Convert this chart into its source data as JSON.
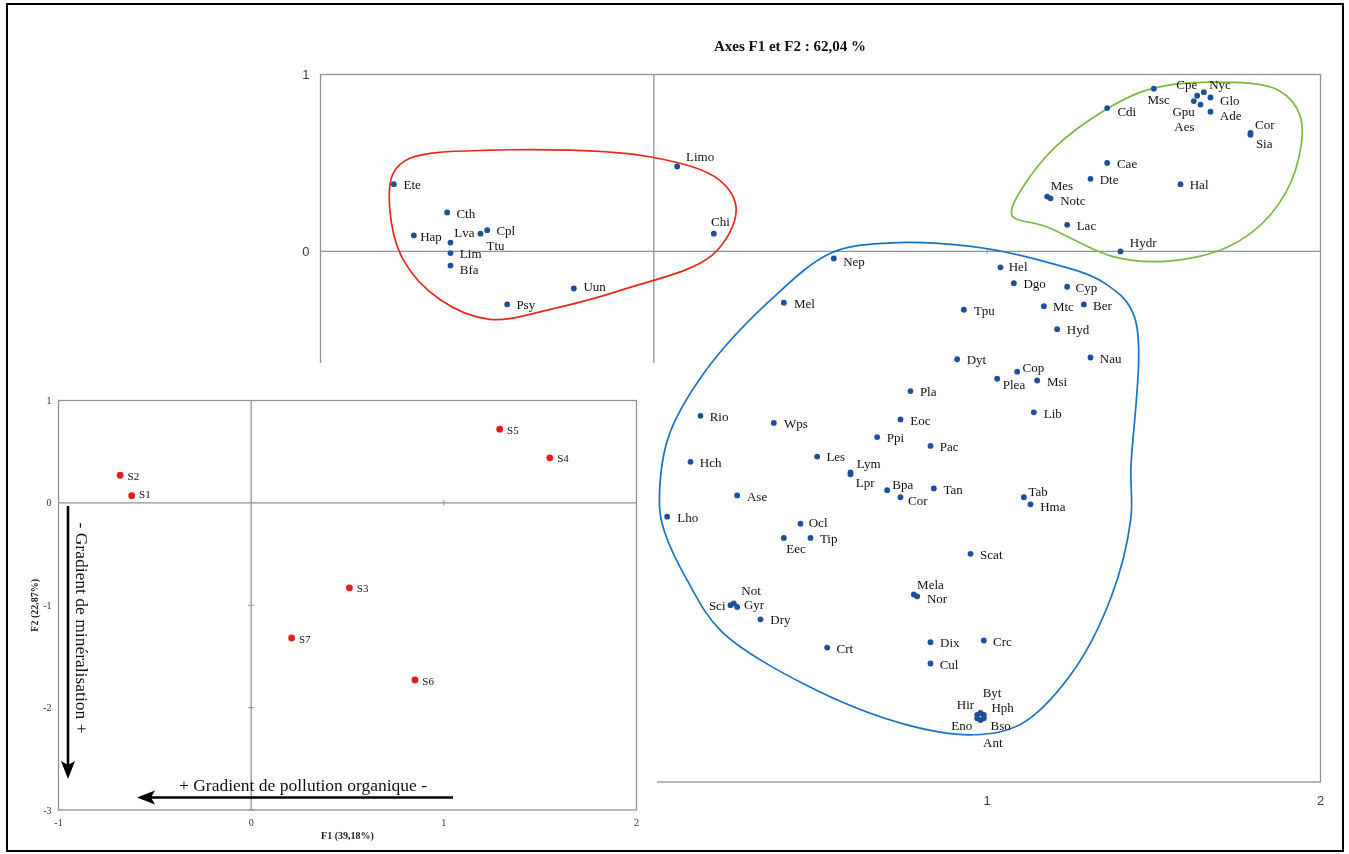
{
  "chart_data": [
    {
      "type": "scatter",
      "title": "Axes F1 et F2 : 62,04 %",
      "xlim": [
        -1,
        2
      ],
      "ylim": [
        -3,
        1
      ],
      "xticks": [
        1,
        2
      ],
      "yticks": [
        0,
        1
      ],
      "marker": "circle",
      "series": [
        {
          "name": "Ete",
          "color": "#1c4f9c",
          "x": [
            -0.78
          ],
          "values": [
            0.38
          ]
        },
        {
          "name": "Cth",
          "color": "#1c4f9c",
          "x": [
            -0.62
          ],
          "values": [
            0.22
          ]
        },
        {
          "name": "Cpl",
          "color": "#1c4f9c",
          "x": [
            -0.5
          ],
          "values": [
            0.12
          ]
        },
        {
          "name": "Ttu",
          "color": "#1c4f9c",
          "x": [
            -0.52
          ],
          "values": [
            0.1
          ]
        },
        {
          "name": "Hap",
          "color": "#1c4f9c",
          "x": [
            -0.72
          ],
          "values": [
            0.09
          ]
        },
        {
          "name": "Lva",
          "color": "#1c4f9c",
          "x": [
            -0.61
          ],
          "values": [
            0.05
          ]
        },
        {
          "name": "Lim",
          "color": "#1c4f9c",
          "x": [
            -0.61
          ],
          "values": [
            -0.01
          ]
        },
        {
          "name": "Bfa",
          "color": "#1c4f9c",
          "x": [
            -0.61
          ],
          "values": [
            -0.08
          ]
        },
        {
          "name": "Uun",
          "color": "#1c4f9c",
          "x": [
            -0.24
          ],
          "values": [
            -0.21
          ]
        },
        {
          "name": "Psy",
          "color": "#1c4f9c",
          "x": [
            -0.44
          ],
          "values": [
            -0.3
          ]
        },
        {
          "name": "Limo",
          "color": "#1c4f9c",
          "x": [
            0.07
          ],
          "values": [
            0.48
          ]
        },
        {
          "name": "Chi",
          "color": "#1c4f9c",
          "x": [
            0.18
          ],
          "values": [
            0.1
          ]
        },
        {
          "name": "Msc",
          "color": "#1c4f9c",
          "x": [
            1.5
          ],
          "values": [
            0.92
          ]
        },
        {
          "name": "Nyc",
          "color": "#1c4f9c",
          "x": [
            1.65
          ],
          "values": [
            0.9
          ]
        },
        {
          "name": "Cpe",
          "color": "#1c4f9c",
          "x": [
            1.63
          ],
          "values": [
            0.88
          ]
        },
        {
          "name": "Glo",
          "color": "#1c4f9c",
          "x": [
            1.67
          ],
          "values": [
            0.87
          ]
        },
        {
          "name": "Gpu",
          "color": "#1c4f9c",
          "x": [
            1.62
          ],
          "values": [
            0.85
          ]
        },
        {
          "name": "Aes",
          "color": "#1c4f9c",
          "x": [
            1.64
          ],
          "values": [
            0.83
          ]
        },
        {
          "name": "Ade",
          "color": "#1c4f9c",
          "x": [
            1.67
          ],
          "values": [
            0.79
          ]
        },
        {
          "name": "Cdi",
          "color": "#1c4f9c",
          "x": [
            1.36
          ],
          "values": [
            0.81
          ]
        },
        {
          "name": "Cor",
          "color": "#1c4f9c",
          "x": [
            1.79
          ],
          "values": [
            0.67
          ]
        },
        {
          "name": "Sia",
          "color": "#1c4f9c",
          "x": [
            1.79
          ],
          "values": [
            0.66
          ]
        },
        {
          "name": "Cae",
          "color": "#1c4f9c",
          "x": [
            1.36
          ],
          "values": [
            0.5
          ]
        },
        {
          "name": "Dte",
          "color": "#1c4f9c",
          "x": [
            1.31
          ],
          "values": [
            0.41
          ]
        },
        {
          "name": "Mes",
          "color": "#1c4f9c",
          "x": [
            1.18
          ],
          "values": [
            0.31
          ]
        },
        {
          "name": "Notc",
          "color": "#1c4f9c",
          "x": [
            1.19
          ],
          "values": [
            0.3
          ]
        },
        {
          "name": "Hal",
          "color": "#1c4f9c",
          "x": [
            1.58
          ],
          "values": [
            0.38
          ]
        },
        {
          "name": "Lac",
          "color": "#1c4f9c",
          "x": [
            1.24
          ],
          "values": [
            0.15
          ]
        },
        {
          "name": "Hydr",
          "color": "#1c4f9c",
          "x": [
            1.4
          ],
          "values": [
            0.0
          ]
        },
        {
          "name": "Nep",
          "color": "#1c4f9c",
          "x": [
            0.54
          ],
          "values": [
            -0.04
          ]
        },
        {
          "name": "Hel",
          "color": "#1c4f9c",
          "x": [
            1.04
          ],
          "values": [
            -0.09
          ]
        },
        {
          "name": "Dgo",
          "color": "#1c4f9c",
          "x": [
            1.08
          ],
          "values": [
            -0.18
          ]
        },
        {
          "name": "Cyp",
          "color": "#1c4f9c",
          "x": [
            1.24
          ],
          "values": [
            -0.2
          ]
        },
        {
          "name": "Ber",
          "color": "#1c4f9c",
          "x": [
            1.29
          ],
          "values": [
            -0.3
          ]
        },
        {
          "name": "Mtc",
          "color": "#1c4f9c",
          "x": [
            1.17
          ],
          "values": [
            -0.31
          ]
        },
        {
          "name": "Mel",
          "color": "#1c4f9c",
          "x": [
            0.39
          ],
          "values": [
            -0.29
          ]
        },
        {
          "name": "Tpu",
          "color": "#1c4f9c",
          "x": [
            0.93
          ],
          "values": [
            -0.33
          ]
        },
        {
          "name": "Hyd",
          "color": "#1c4f9c",
          "x": [
            1.21
          ],
          "values": [
            -0.44
          ]
        },
        {
          "name": "Nau",
          "color": "#1c4f9c",
          "x": [
            1.31
          ],
          "values": [
            -0.6
          ]
        },
        {
          "name": "Dyt",
          "color": "#1c4f9c",
          "x": [
            0.91
          ],
          "values": [
            -0.61
          ]
        },
        {
          "name": "Cop",
          "color": "#1c4f9c",
          "x": [
            1.09
          ],
          "values": [
            -0.68
          ]
        },
        {
          "name": "Plea",
          "color": "#1c4f9c",
          "x": [
            1.03
          ],
          "values": [
            -0.72
          ]
        },
        {
          "name": "Msi",
          "color": "#1c4f9c",
          "x": [
            1.15
          ],
          "values": [
            -0.73
          ]
        },
        {
          "name": "Pla",
          "color": "#1c4f9c",
          "x": [
            0.77
          ],
          "values": [
            -0.79
          ]
        },
        {
          "name": "Lib",
          "color": "#1c4f9c",
          "x": [
            1.14
          ],
          "values": [
            -0.91
          ]
        },
        {
          "name": "Rio",
          "color": "#1c4f9c",
          "x": [
            0.14
          ],
          "values": [
            -0.93
          ]
        },
        {
          "name": "Wps",
          "color": "#1c4f9c",
          "x": [
            0.36
          ],
          "values": [
            -0.97
          ]
        },
        {
          "name": "Eoc",
          "color": "#1c4f9c",
          "x": [
            0.74
          ],
          "values": [
            -0.95
          ]
        },
        {
          "name": "Ppi",
          "color": "#1c4f9c",
          "x": [
            0.67
          ],
          "values": [
            -1.05
          ]
        },
        {
          "name": "Pac",
          "color": "#1c4f9c",
          "x": [
            0.83
          ],
          "values": [
            -1.1
          ]
        },
        {
          "name": "Hch",
          "color": "#1c4f9c",
          "x": [
            0.11
          ],
          "values": [
            -1.19
          ]
        },
        {
          "name": "Les",
          "color": "#1c4f9c",
          "x": [
            0.49
          ],
          "values": [
            -1.16
          ]
        },
        {
          "name": "Lym",
          "color": "#1c4f9c",
          "x": [
            0.59
          ],
          "values": [
            -1.25
          ]
        },
        {
          "name": "Lpr",
          "color": "#1c4f9c",
          "x": [
            0.59
          ],
          "values": [
            -1.26
          ]
        },
        {
          "name": "Bpa",
          "color": "#1c4f9c",
          "x": [
            0.7
          ],
          "values": [
            -1.35
          ]
        },
        {
          "name": "Cor",
          "color": "#1c4f9c",
          "x": [
            0.74
          ],
          "values": [
            -1.39
          ]
        },
        {
          "name": "Tan",
          "color": "#1c4f9c",
          "x": [
            0.84
          ],
          "values": [
            -1.34
          ]
        },
        {
          "name": "Ase",
          "color": "#1c4f9c",
          "x": [
            0.25
          ],
          "values": [
            -1.38
          ]
        },
        {
          "name": "Tab",
          "color": "#1c4f9c",
          "x": [
            1.11
          ],
          "values": [
            -1.39
          ]
        },
        {
          "name": "Hma",
          "color": "#1c4f9c",
          "x": [
            1.13
          ],
          "values": [
            -1.43
          ]
        },
        {
          "name": "Lho",
          "color": "#1c4f9c",
          "x": [
            0.04
          ],
          "values": [
            -1.5
          ]
        },
        {
          "name": "Ocl",
          "color": "#1c4f9c",
          "x": [
            0.44
          ],
          "values": [
            -1.54
          ]
        },
        {
          "name": "Eec",
          "color": "#1c4f9c",
          "x": [
            0.39
          ],
          "values": [
            -1.62
          ]
        },
        {
          "name": "Tip",
          "color": "#1c4f9c",
          "x": [
            0.47
          ],
          "values": [
            -1.62
          ]
        },
        {
          "name": "Scat",
          "color": "#1c4f9c",
          "x": [
            0.95
          ],
          "values": [
            -1.71
          ]
        },
        {
          "name": "Mela",
          "color": "#1c4f9c",
          "x": [
            0.78
          ],
          "values": [
            -1.94
          ]
        },
        {
          "name": "Nor",
          "color": "#1c4f9c",
          "x": [
            0.79
          ],
          "values": [
            -1.95
          ]
        },
        {
          "name": "Sci",
          "color": "#1c4f9c",
          "x": [
            0.23
          ],
          "values": [
            -2.0
          ]
        },
        {
          "name": "Not",
          "color": "#1c4f9c",
          "x": [
            0.24
          ],
          "values": [
            -1.99
          ]
        },
        {
          "name": "Gyr",
          "color": "#1c4f9c",
          "x": [
            0.25
          ],
          "values": [
            -2.01
          ]
        },
        {
          "name": "Dry",
          "color": "#1c4f9c",
          "x": [
            0.32
          ],
          "values": [
            -2.08
          ]
        },
        {
          "name": "Crt",
          "color": "#1c4f9c",
          "x": [
            0.52
          ],
          "values": [
            -2.24
          ]
        },
        {
          "name": "Dix",
          "color": "#1c4f9c",
          "x": [
            0.83
          ],
          "values": [
            -2.21
          ]
        },
        {
          "name": "Crc",
          "color": "#1c4f9c",
          "x": [
            0.99
          ],
          "values": [
            -2.2
          ]
        },
        {
          "name": "Cul",
          "color": "#1c4f9c",
          "x": [
            0.83
          ],
          "values": [
            -2.33
          ]
        },
        {
          "name": "Hir",
          "color": "#1c4f9c",
          "x": [
            0.97
          ],
          "values": [
            -2.62
          ]
        },
        {
          "name": "Byt",
          "color": "#1c4f9c",
          "x": [
            0.98
          ],
          "values": [
            -2.61
          ]
        },
        {
          "name": "Hph",
          "color": "#1c4f9c",
          "x": [
            0.99
          ],
          "values": [
            -2.62
          ]
        },
        {
          "name": "Eno",
          "color": "#1c4f9c",
          "x": [
            0.97
          ],
          "values": [
            -2.64
          ]
        },
        {
          "name": "Bso",
          "color": "#1c4f9c",
          "x": [
            0.99
          ],
          "values": [
            -2.64
          ]
        },
        {
          "name": "Ant",
          "color": "#1c4f9c",
          "x": [
            0.98
          ],
          "values": [
            -2.65
          ]
        }
      ]
    },
    {
      "type": "scatter",
      "xlabel": "F1 (39,18%)",
      "ylabel": "F2 (22,87%)",
      "xlim": [
        -1,
        2
      ],
      "ylim": [
        -3,
        1
      ],
      "xticks": [
        -1,
        0,
        1,
        2
      ],
      "yticks": [
        -3,
        -2,
        -1,
        0,
        1
      ],
      "marker": "circle",
      "annotations": [
        "- Gradient de minéralisation +",
        "+ Gradient de pollution organique -"
      ],
      "series": [
        {
          "name": "S1",
          "color": "#e31e1a",
          "x": [
            -0.62
          ],
          "values": [
            0.07
          ]
        },
        {
          "name": "S2",
          "color": "#e31e1a",
          "x": [
            -0.68
          ],
          "values": [
            0.27
          ]
        },
        {
          "name": "S3",
          "color": "#e31e1a",
          "x": [
            0.51
          ],
          "values": [
            -0.83
          ]
        },
        {
          "name": "S4",
          "color": "#e31e1a",
          "x": [
            1.55
          ],
          "values": [
            0.44
          ]
        },
        {
          "name": "S5",
          "color": "#e31e1a",
          "x": [
            1.29
          ],
          "values": [
            0.72
          ]
        },
        {
          "name": "S6",
          "color": "#e31e1a",
          "x": [
            0.85
          ],
          "values": [
            -1.73
          ]
        },
        {
          "name": "S7",
          "color": "#e31e1a",
          "x": [
            0.21
          ],
          "values": [
            -1.32
          ]
        }
      ]
    }
  ]
}
